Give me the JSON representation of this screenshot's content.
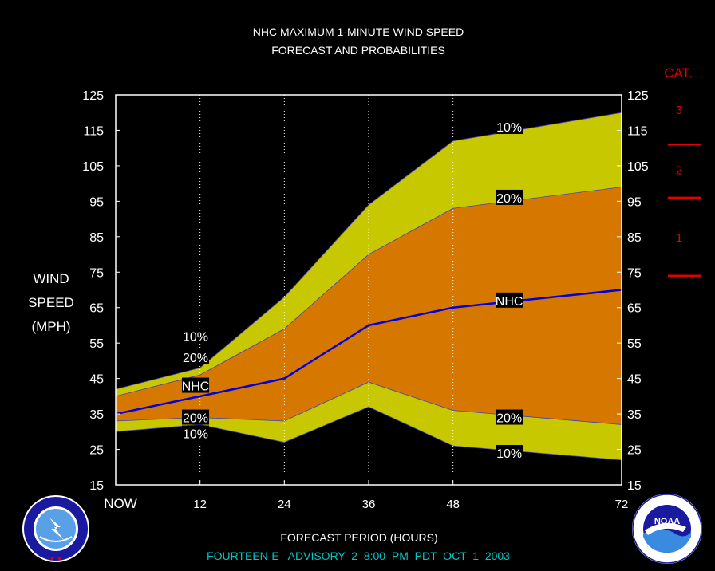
{
  "chart_data": {
    "type": "area",
    "title": "NHC MAXIMUM 1-MINUTE WIND SPEED",
    "subtitle": "FORECAST AND PROBABILITIES",
    "xlabel": "FORECAST PERIOD (HOURS)",
    "ylabel": [
      "WIND",
      "SPEED",
      "(MPH)"
    ],
    "footer": "FOURTEEN-E   ADVISORY  2  8:00  PM  PDT  OCT  1  2003",
    "x_ticks": [
      {
        "x": 0,
        "label": "NOW"
      },
      {
        "x": 12,
        "label": "12"
      },
      {
        "x": 24,
        "label": "24"
      },
      {
        "x": 36,
        "label": "36"
      },
      {
        "x": 48,
        "label": "48"
      },
      {
        "x": 72,
        "label": "72"
      }
    ],
    "xlim": [
      0,
      72
    ],
    "ylim": [
      15,
      125
    ],
    "y_ticks": [
      15,
      25,
      35,
      45,
      55,
      65,
      75,
      85,
      95,
      105,
      115,
      125
    ],
    "x": [
      0,
      12,
      24,
      36,
      48,
      72
    ],
    "series": [
      {
        "name": "10%",
        "role": "upper",
        "values": [
          42,
          48,
          68,
          94,
          112,
          120
        ]
      },
      {
        "name": "20%",
        "role": "upper",
        "values": [
          40,
          46,
          59,
          80,
          93,
          99
        ]
      },
      {
        "name": "NHC",
        "role": "forecast",
        "values": [
          35,
          40,
          45,
          60,
          65,
          70
        ]
      },
      {
        "name": "20%",
        "role": "lower",
        "values": [
          33,
          34,
          33,
          44,
          36,
          32
        ]
      },
      {
        "name": "10%",
        "role": "lower",
        "values": [
          30,
          32,
          27,
          37,
          26,
          22
        ]
      }
    ],
    "labels": [
      {
        "text": "10%",
        "x": 56,
        "y": 116
      },
      {
        "text": "20%",
        "x": 56,
        "y": 96
      },
      {
        "text": "NHC",
        "x": 56,
        "y": 67
      },
      {
        "text": "20%",
        "x": 56,
        "y": 34
      },
      {
        "text": "10%",
        "x": 56,
        "y": 24
      },
      {
        "text": "10%",
        "x": 5,
        "y": 57
      },
      {
        "text": "20%",
        "x": 5,
        "y": 51
      },
      {
        "text": "NHC",
        "x": 5,
        "y": 43
      },
      {
        "text": "20%",
        "x": 5,
        "y": 34
      },
      {
        "text": "10%",
        "x": 5,
        "y": 29.5
      }
    ],
    "categories_scale": {
      "title": "CAT.",
      "boundaries_mph": [
        111,
        96,
        74
      ],
      "labels": [
        {
          "text": "3",
          "y": 121
        },
        {
          "text": "2",
          "y": 104
        },
        {
          "text": "1",
          "y": 85
        }
      ]
    },
    "colors": {
      "outer_band": "#c8c800",
      "inner_band": "#d67800",
      "forecast_line": "#0000e0",
      "grid": "#ffffff",
      "category": "#e00000",
      "footer": "#00c8c8"
    },
    "grid": true
  },
  "logos": {
    "left": "NATIONAL WEATHER SERVICE",
    "right": "NOAA"
  }
}
